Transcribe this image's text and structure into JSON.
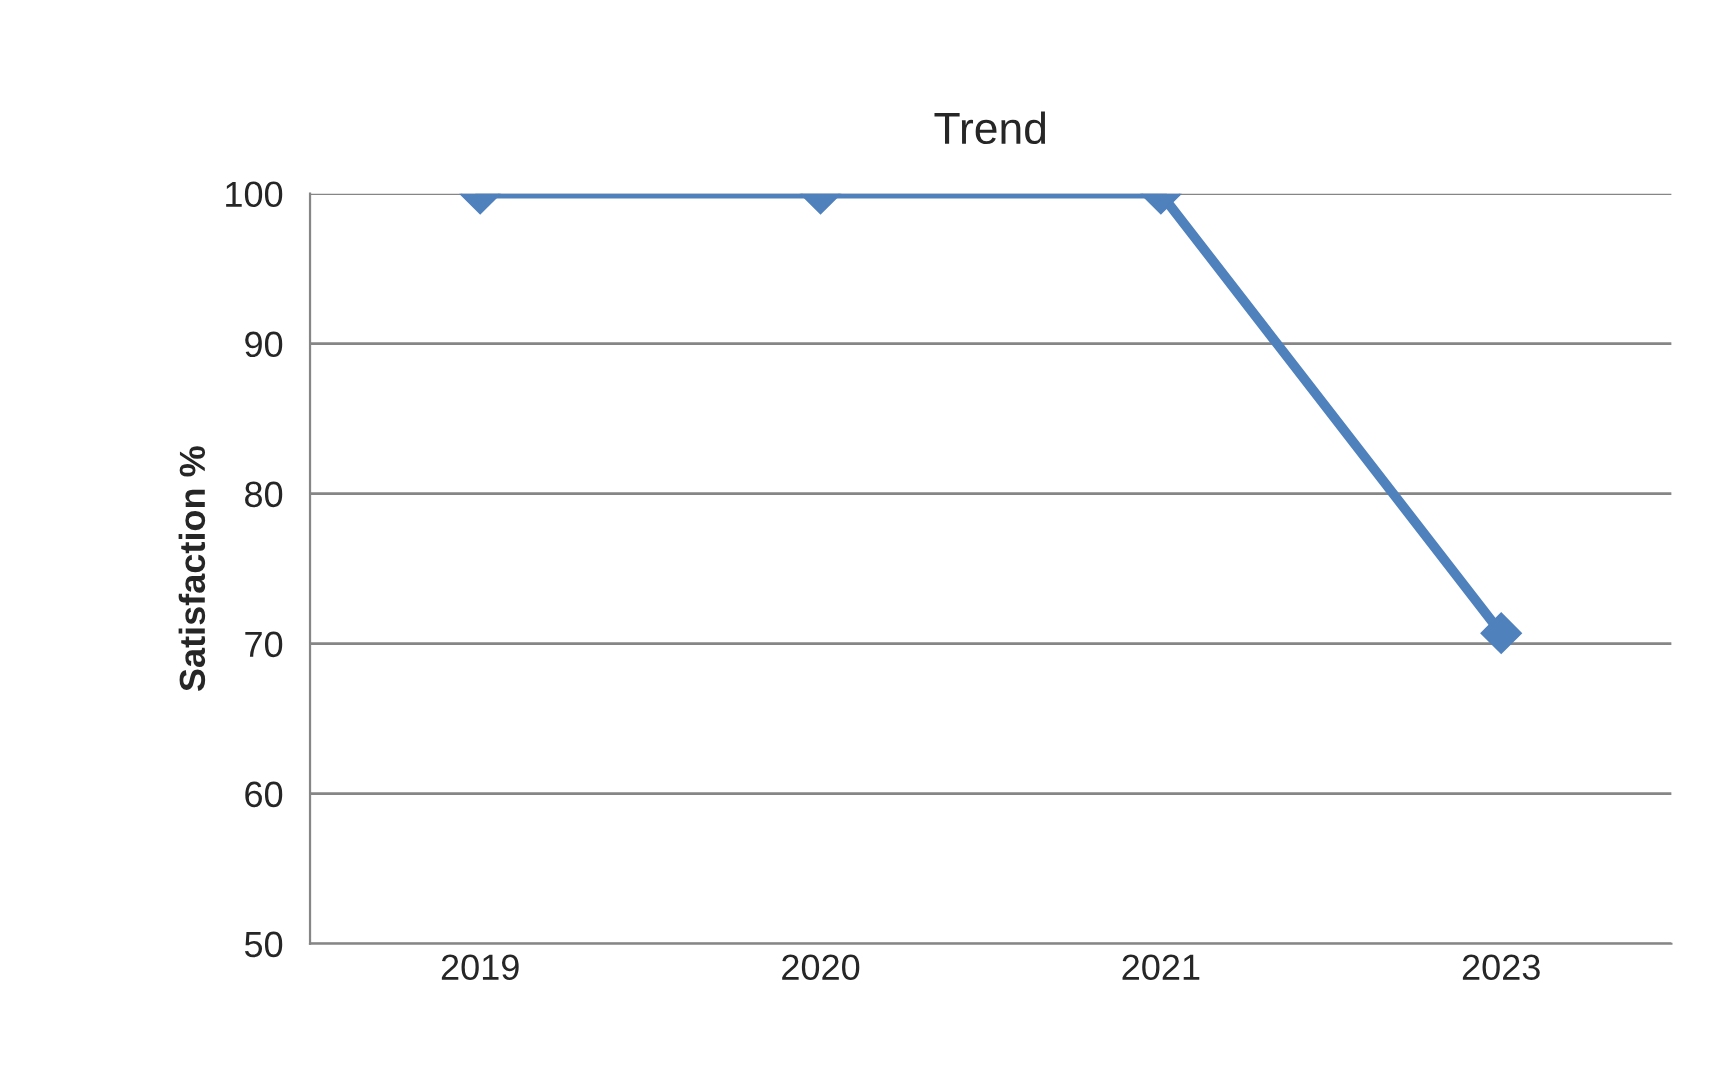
{
  "chart_data": {
    "type": "line",
    "title": "Trend",
    "ylabel": "Satisfaction %",
    "categories": [
      "2019",
      "2020",
      "2021",
      "2023"
    ],
    "series": [
      {
        "color": "#4f81bd",
        "values": [
          100,
          100,
          100,
          70.7
        ]
      }
    ],
    "ylim": [
      50,
      100
    ],
    "yticks": [
      50,
      60,
      70,
      80,
      90,
      100
    ],
    "grid": "y",
    "marker": "diamond",
    "line_style": "solid",
    "legend": false
  }
}
